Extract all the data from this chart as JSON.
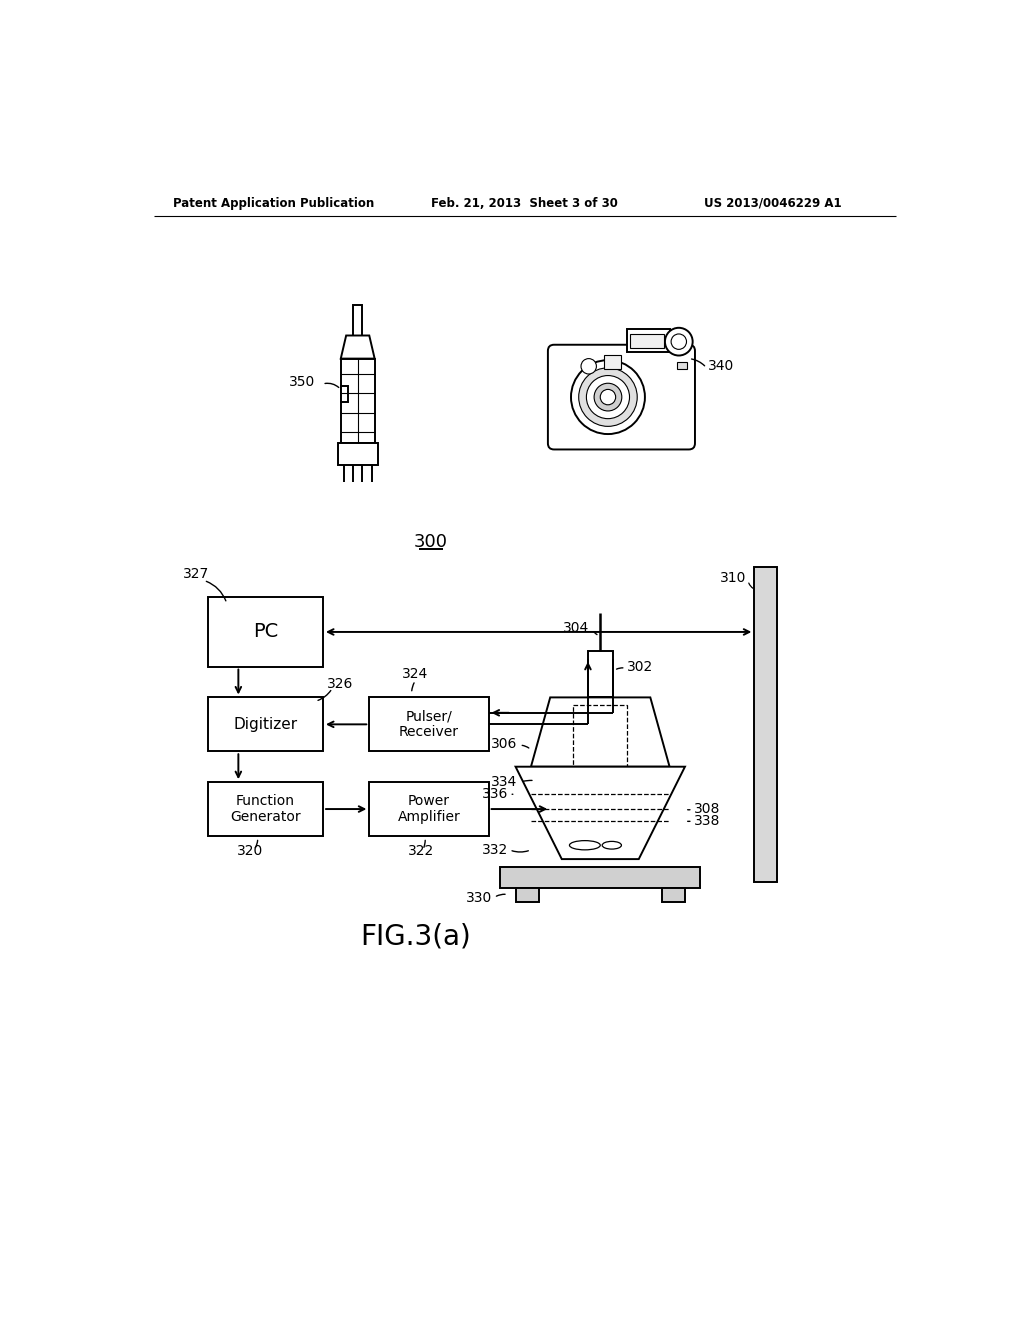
{
  "background_color": "#ffffff",
  "header_left": "Patent Application Publication",
  "header_center": "Feb. 21, 2013  Sheet 3 of 30",
  "header_right": "US 2013/0046229 A1",
  "figure_label": "FIG.3(a)",
  "labels": {
    "pc": "PC",
    "digitizer": "Digitizer",
    "function_gen": "Function\nGenerator",
    "pulser": "Pulser/\nReceiver",
    "power_amp": "Power\nAmplifier"
  },
  "ref": {
    "n327": "327",
    "n326": "326",
    "n324": "324",
    "n320": "320",
    "n322": "322",
    "n310": "310",
    "n302": "302",
    "n304": "304",
    "n306": "306",
    "n308": "308",
    "n330": "330",
    "n332": "332",
    "n334": "334",
    "n336": "336",
    "n338": "338",
    "n340": "340",
    "n350": "350",
    "n300": "300"
  }
}
